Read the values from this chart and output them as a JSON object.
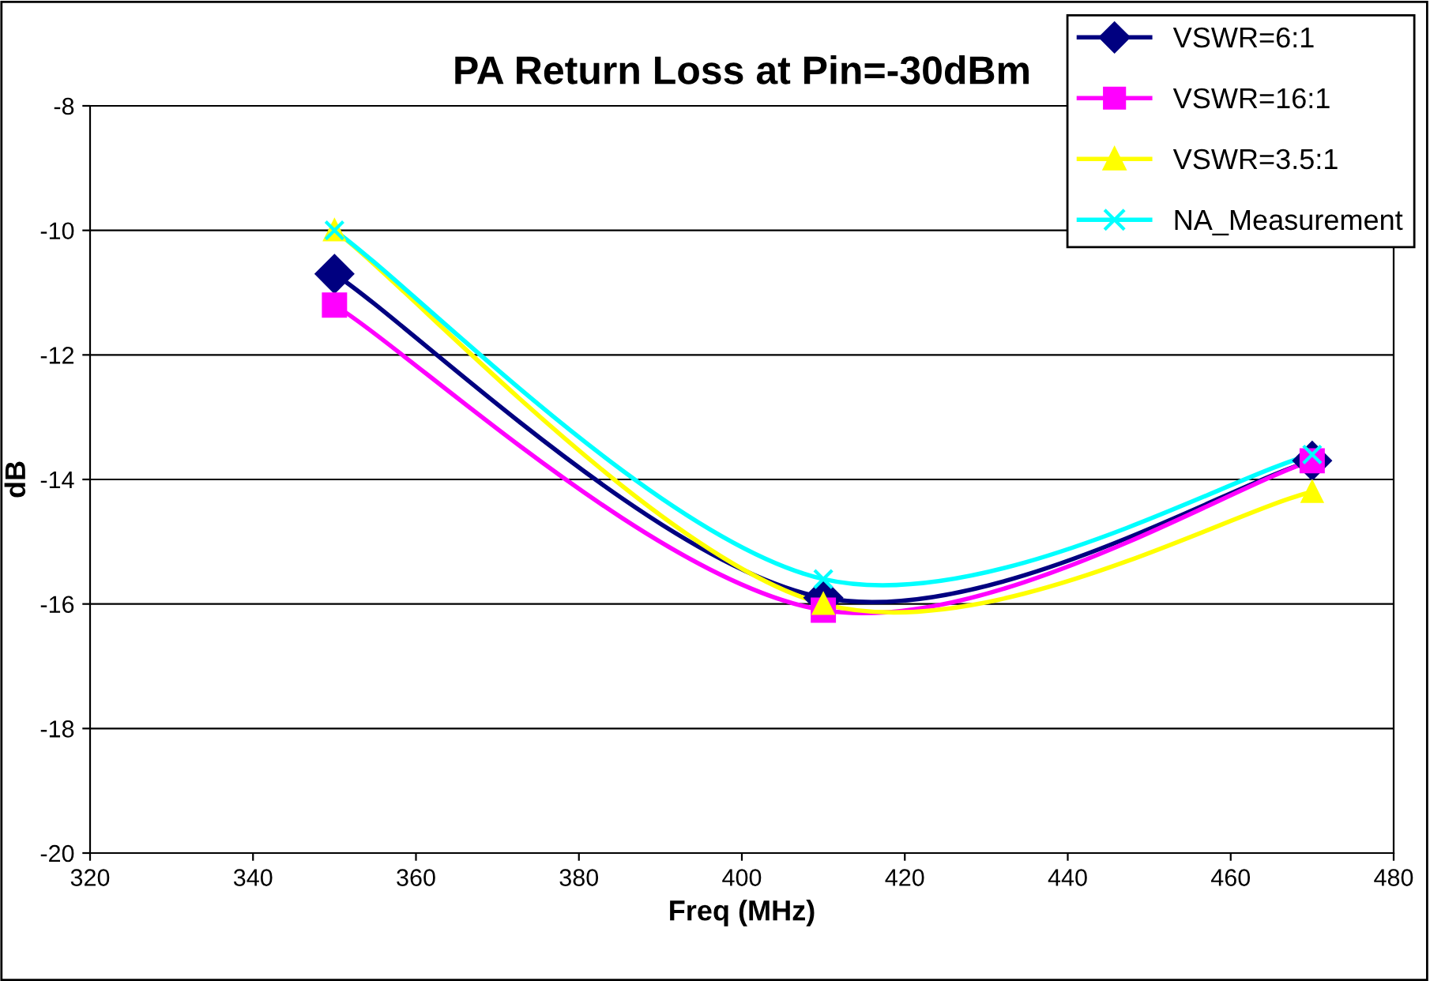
{
  "chart_data": {
    "type": "line",
    "title": "PA Return Loss at Pin=-30dBm",
    "xlabel": "Freq (MHz)",
    "ylabel": "dB",
    "x": [
      350,
      410,
      470
    ],
    "series": [
      {
        "name": "VSWR=6:1",
        "color": "#000080",
        "marker": "diamond",
        "values": [
          -10.7,
          -15.9,
          -13.7
        ]
      },
      {
        "name": "VSWR=16:1",
        "color": "#ff00ff",
        "marker": "square",
        "values": [
          -11.2,
          -16.1,
          -13.7
        ]
      },
      {
        "name": "VSWR=3.5:1",
        "color": "#ffff00",
        "marker": "triangle",
        "values": [
          -10.0,
          -16.0,
          -14.2
        ]
      },
      {
        "name": "NA_Measurement",
        "color": "#00ffff",
        "marker": "cross",
        "values": [
          -10.0,
          -15.6,
          -13.6
        ]
      }
    ],
    "xlim": [
      320,
      480
    ],
    "xticks": [
      320,
      340,
      360,
      380,
      400,
      420,
      440,
      460,
      480
    ],
    "ylim": [
      -20,
      -8
    ],
    "yticks": [
      -20,
      -18,
      -16,
      -14,
      -12,
      -10,
      -8
    ],
    "grid": "y",
    "legend": "top right",
    "line_style": "solid"
  }
}
